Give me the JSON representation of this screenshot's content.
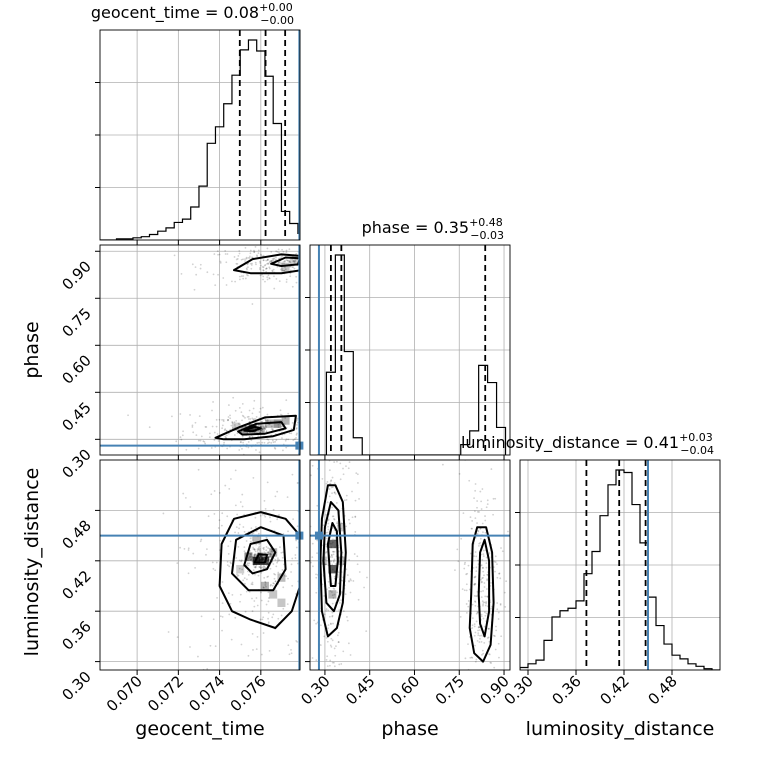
{
  "chart_data": {
    "type": "corner",
    "parameters": [
      "geocent_time",
      "phase",
      "luminosity_distance"
    ],
    "truth_color": "#4682b4",
    "truths": {
      "geocent_time": 0.07787,
      "phase": 0.28,
      "luminosity_distance": 0.45
    },
    "panels": {
      "geocent_time": {
        "title": {
          "name": "geocent_time",
          "value": "0.08",
          "plus": "+0.00",
          "minus": "−0.00"
        },
        "xlim": [
          0.0682,
          0.0779
        ],
        "ticks": [
          0.07,
          0.072,
          0.074,
          0.076
        ],
        "tick_labels": [
          "0.070",
          "0.072",
          "0.074",
          "0.076"
        ],
        "quantiles": [
          0.07498,
          0.07623,
          0.07718
        ],
        "hist_edges": [
          0.0682,
          0.0686,
          0.069,
          0.0694,
          0.0698,
          0.0702,
          0.0706,
          0.071,
          0.0714,
          0.0718,
          0.0722,
          0.0726,
          0.073,
          0.0734,
          0.0738,
          0.0742,
          0.0746,
          0.075,
          0.0754,
          0.0758,
          0.0762,
          0.0766,
          0.077,
          0.0774,
          0.0778,
          0.0782
        ],
        "hist_counts": [
          0,
          0,
          1,
          1,
          2,
          3,
          5,
          8,
          11,
          16,
          19,
          30,
          49,
          88,
          103,
          124,
          150,
          173,
          182,
          172,
          149,
          106,
          26,
          15,
          6
        ]
      },
      "phase": {
        "title": {
          "name": "phase",
          "value": "0.35",
          "plus": "+0.48",
          "minus": "−0.03"
        },
        "xlim": [
          0.25,
          0.92
        ],
        "ticks": [
          0.3,
          0.45,
          0.6,
          0.75,
          0.9
        ],
        "tick_labels": [
          "0.30",
          "0.45",
          "0.60",
          "0.75",
          "0.90"
        ],
        "quantiles": [
          0.32,
          0.355,
          0.837
        ],
        "hist_edges": [
          0.275,
          0.305,
          0.335,
          0.365,
          0.395,
          0.425,
          0.455,
          0.485,
          0.515,
          0.545,
          0.575,
          0.605,
          0.635,
          0.665,
          0.695,
          0.725,
          0.755,
          0.785,
          0.815,
          0.845,
          0.875,
          0.905
        ],
        "hist_counts": [
          0,
          24,
          58,
          30,
          5,
          0,
          0,
          0,
          0,
          0,
          0,
          0,
          0,
          0,
          0,
          0,
          3,
          7,
          26,
          21,
          8
        ]
      },
      "luminosity_distance": {
        "title": {
          "name": "luminosity_distance",
          "value": "0.41",
          "plus": "+0.03",
          "minus": "−0.04"
        },
        "xlim": [
          0.29,
          0.54
        ],
        "ticks": [
          0.3,
          0.36,
          0.42,
          0.48
        ],
        "tick_labels": [
          "0.30",
          "0.36",
          "0.42",
          "0.48"
        ],
        "quantiles": [
          0.373,
          0.414,
          0.447
        ],
        "hist_edges": [
          0.29,
          0.3,
          0.31,
          0.32,
          0.33,
          0.34,
          0.35,
          0.36,
          0.37,
          0.38,
          0.39,
          0.4,
          0.41,
          0.42,
          0.43,
          0.44,
          0.45,
          0.46,
          0.47,
          0.48,
          0.49,
          0.5,
          0.51,
          0.52,
          0.53,
          0.54
        ],
        "hist_counts": [
          2,
          5,
          8,
          24,
          43,
          48,
          50,
          56,
          78,
          96,
          125,
          150,
          162,
          160,
          134,
          103,
          59,
          36,
          21,
          12,
          9,
          5,
          3,
          1,
          0
        ]
      }
    },
    "pairs": [
      {
        "x": "geocent_time",
        "y": "phase",
        "ylim": [
          0.25,
          0.92
        ],
        "yticks": [
          0.3,
          0.45,
          0.6,
          0.75,
          0.9
        ],
        "ytick_labels": [
          "0.30",
          "0.45",
          "0.60",
          "0.75",
          "0.90"
        ],
        "cells": [
          [
            0.0768,
            0.35,
            0.55
          ],
          [
            0.0772,
            0.36,
            0.4
          ],
          [
            0.0764,
            0.35,
            0.35
          ],
          [
            0.0756,
            0.335,
            0.9
          ],
          [
            0.0752,
            0.33,
            0.5
          ],
          [
            0.076,
            0.33,
            0.4
          ],
          [
            0.0748,
            0.34,
            0.25
          ],
          [
            0.0772,
            0.85,
            0.3
          ],
          [
            0.0776,
            0.87,
            0.25
          ]
        ],
        "contours": [
          [
            [
              0.0738,
              0.305
            ],
            [
              0.075,
              0.34
            ],
            [
              0.0762,
              0.37
            ],
            [
              0.0777,
              0.375
            ],
            [
              0.0776,
              0.33
            ],
            [
              0.0766,
              0.31
            ],
            [
              0.0752,
              0.3
            ],
            [
              0.0742,
              0.3
            ]
          ],
          [
            [
              0.0749,
              0.325
            ],
            [
              0.0758,
              0.35
            ],
            [
              0.077,
              0.355
            ],
            [
              0.0772,
              0.335
            ],
            [
              0.0762,
              0.318
            ],
            [
              0.0751,
              0.315
            ]
          ],
          [
            [
              0.0752,
              0.328
            ],
            [
              0.0757,
              0.34
            ],
            [
              0.076,
              0.335
            ],
            [
              0.0756,
              0.326
            ]
          ],
          [
            [
              0.0747,
              0.84
            ],
            [
              0.0756,
              0.875
            ],
            [
              0.077,
              0.89
            ],
            [
              0.078,
              0.885
            ],
            [
              0.078,
              0.84
            ],
            [
              0.077,
              0.83
            ],
            [
              0.0755,
              0.83
            ]
          ],
          [
            [
              0.0765,
              0.86
            ],
            [
              0.0772,
              0.88
            ],
            [
              0.0779,
              0.878
            ],
            [
              0.0778,
              0.858
            ],
            [
              0.077,
              0.853
            ]
          ]
        ]
      },
      {
        "x": "geocent_time",
        "y": "luminosity_distance",
        "ylim": [
          0.29,
          0.54
        ],
        "yticks": [
          0.3,
          0.36,
          0.42,
          0.48
        ],
        "ytick_labels": [
          "0.30",
          "0.36",
          "0.42",
          "0.48"
        ],
        "cells": [
          [
            0.0758,
            0.42,
            1.0
          ],
          [
            0.0762,
            0.42,
            0.85
          ],
          [
            0.0754,
            0.425,
            0.6
          ],
          [
            0.0766,
            0.43,
            0.4
          ],
          [
            0.0758,
            0.445,
            0.35
          ],
          [
            0.075,
            0.41,
            0.25
          ],
          [
            0.077,
            0.4,
            0.35
          ],
          [
            0.0766,
            0.38,
            0.3
          ],
          [
            0.0762,
            0.39,
            0.4
          ],
          [
            0.077,
            0.37,
            0.3
          ]
        ],
        "contours": [
          [
            [
              0.074,
              0.39
            ],
            [
              0.0741,
              0.44
            ],
            [
              0.0747,
              0.47
            ],
            [
              0.076,
              0.478
            ],
            [
              0.0772,
              0.47
            ],
            [
              0.0779,
              0.45
            ],
            [
              0.0779,
              0.39
            ],
            [
              0.0775,
              0.36
            ],
            [
              0.0767,
              0.34
            ],
            [
              0.0755,
              0.35
            ],
            [
              0.0746,
              0.36
            ]
          ],
          [
            [
              0.0746,
              0.405
            ],
            [
              0.0748,
              0.445
            ],
            [
              0.076,
              0.46
            ],
            [
              0.0771,
              0.45
            ],
            [
              0.0772,
              0.41
            ],
            [
              0.0766,
              0.385
            ],
            [
              0.0754,
              0.385
            ]
          ],
          [
            [
              0.0752,
              0.415
            ],
            [
              0.0755,
              0.44
            ],
            [
              0.0763,
              0.445
            ],
            [
              0.0767,
              0.43
            ],
            [
              0.0763,
              0.41
            ],
            [
              0.0756,
              0.405
            ]
          ],
          [
            [
              0.0757,
              0.418
            ],
            [
              0.0759,
              0.428
            ],
            [
              0.0763,
              0.427
            ],
            [
              0.0762,
              0.418
            ]
          ]
        ]
      },
      {
        "x": "phase",
        "y": "luminosity_distance",
        "ylim": [
          0.29,
          0.54
        ],
        "yticks": [
          0.3,
          0.36,
          0.42,
          0.48
        ],
        "ytick_labels": [
          "0.30",
          "0.36",
          "0.42",
          "0.48"
        ],
        "cells": [
          [
            0.325,
            0.44,
            0.8
          ],
          [
            0.325,
            0.41,
            0.85
          ],
          [
            0.325,
            0.38,
            0.4
          ],
          [
            0.355,
            0.42,
            0.35
          ],
          [
            0.295,
            0.42,
            0.25
          ],
          [
            0.355,
            0.46,
            0.3
          ]
        ],
        "contours": [
          [
            [
              0.285,
              0.42
            ],
            [
              0.29,
              0.47
            ],
            [
              0.31,
              0.51
            ],
            [
              0.335,
              0.51
            ],
            [
              0.36,
              0.49
            ],
            [
              0.37,
              0.43
            ],
            [
              0.36,
              0.37
            ],
            [
              0.34,
              0.34
            ],
            [
              0.31,
              0.33
            ],
            [
              0.29,
              0.36
            ]
          ],
          [
            [
              0.295,
              0.42
            ],
            [
              0.3,
              0.46
            ],
            [
              0.32,
              0.49
            ],
            [
              0.345,
              0.48
            ],
            [
              0.355,
              0.43
            ],
            [
              0.35,
              0.38
            ],
            [
              0.33,
              0.36
            ],
            [
              0.305,
              0.37
            ]
          ],
          [
            [
              0.31,
              0.44
            ],
            [
              0.325,
              0.465
            ],
            [
              0.34,
              0.455
            ],
            [
              0.343,
              0.42
            ],
            [
              0.335,
              0.39
            ],
            [
              0.32,
              0.39
            ]
          ],
          [
            [
              0.79,
              0.38
            ],
            [
              0.795,
              0.44
            ],
            [
              0.81,
              0.46
            ],
            [
              0.84,
              0.46
            ],
            [
              0.86,
              0.43
            ],
            [
              0.865,
              0.37
            ],
            [
              0.855,
              0.32
            ],
            [
              0.83,
              0.3
            ],
            [
              0.8,
              0.31
            ],
            [
              0.785,
              0.34
            ]
          ],
          [
            [
              0.815,
              0.38
            ],
            [
              0.82,
              0.43
            ],
            [
              0.835,
              0.445
            ],
            [
              0.85,
              0.42
            ],
            [
              0.85,
              0.36
            ],
            [
              0.835,
              0.33
            ],
            [
              0.82,
              0.345
            ]
          ]
        ]
      }
    ],
    "grid": true
  }
}
